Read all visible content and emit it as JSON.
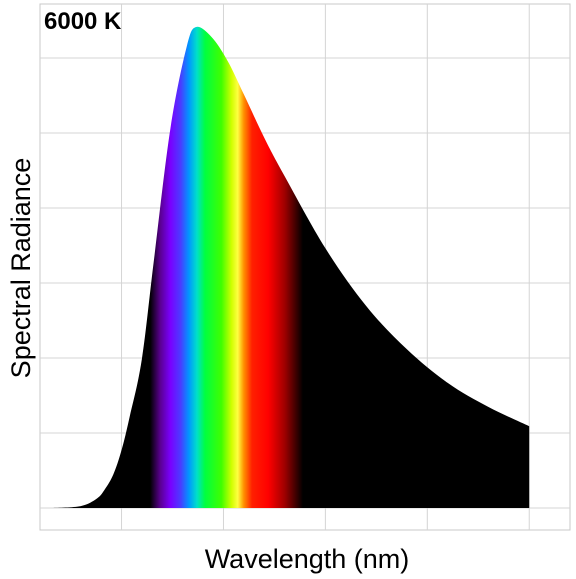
{
  "chart_data": {
    "type": "area",
    "title": "6000 K",
    "xlabel": "Wavelength (nm)",
    "ylabel": "Spectral Radiance",
    "temperature_k": 6000,
    "xlim": [
      100,
      1400
    ],
    "ylim": [
      0,
      1.07
    ],
    "x_gridlines": [
      300,
      550,
      800,
      1050,
      1300
    ],
    "y_gridline_count": 6,
    "grid": true,
    "fill": "visible-spectrum gradient between ~380 nm and ~750 nm, black elsewhere",
    "series": [
      {
        "x": [
          130,
          200,
          240,
          260,
          280,
          300,
          320,
          350,
          380,
          420,
          460,
          483,
          520,
          560,
          600,
          650,
          700,
          800,
          900,
          1000,
          1100,
          1200,
          1300
        ],
        "values": [
          0.0,
          0.004,
          0.02,
          0.04,
          0.07,
          0.12,
          0.19,
          0.31,
          0.52,
          0.79,
          0.96,
          1.0,
          0.98,
          0.93,
          0.86,
          0.77,
          0.69,
          0.54,
          0.42,
          0.33,
          0.26,
          0.21,
          0.17
        ]
      }
    ]
  }
}
